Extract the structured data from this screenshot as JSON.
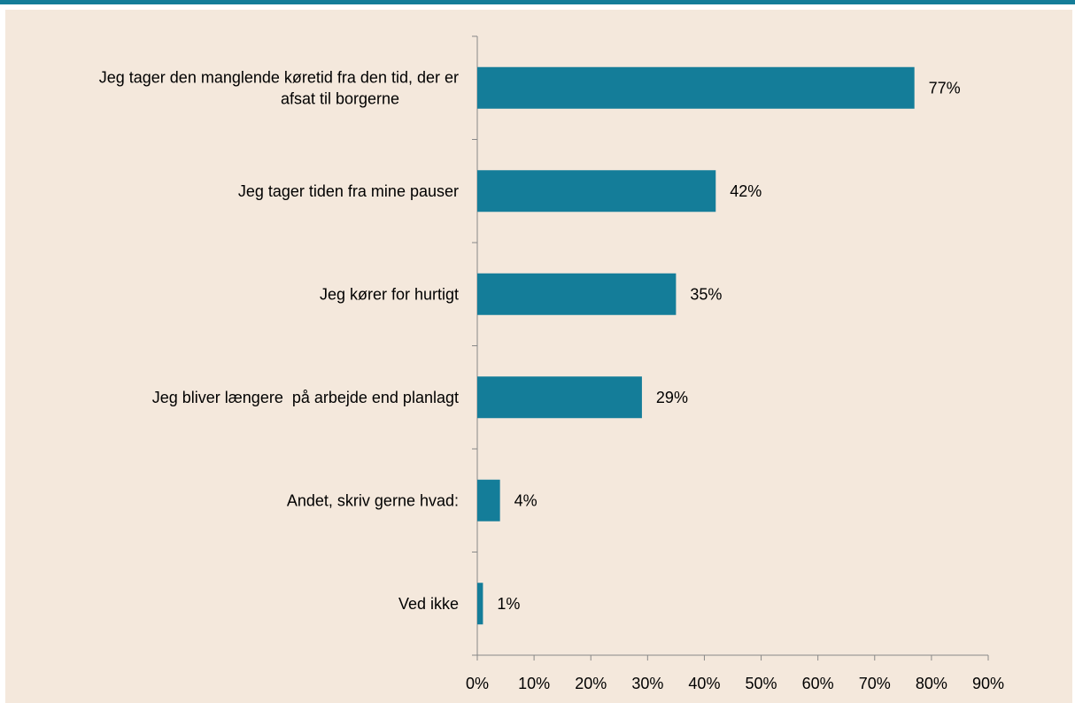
{
  "colors": {
    "bar": "#147d99",
    "background": "#f4e8dc",
    "topbar": "#147d99",
    "axis": "#888888"
  },
  "chart_data": {
    "type": "bar",
    "orientation": "horizontal",
    "categories": [
      "Jeg tager den manglende køretid fra den tid, der er afsat til borgerne",
      "Jeg tager tiden fra mine pauser",
      "Jeg kører for hurtigt",
      "Jeg bliver længere  på arbejde end planlagt",
      "Andet, skriv gerne hvad:",
      "Ved ikke"
    ],
    "category_lines": [
      [
        "Jeg tager den manglende køretid fra den tid, der er",
        "afsat til borgerne"
      ],
      [
        "Jeg tager tiden fra mine pauser"
      ],
      [
        "Jeg kører for hurtigt"
      ],
      [
        "Jeg bliver længere  på arbejde end planlagt"
      ],
      [
        "Andet, skriv gerne hvad:"
      ],
      [
        "Ved ikke"
      ]
    ],
    "values": [
      77,
      42,
      35,
      29,
      4,
      1
    ],
    "value_labels": [
      "77%",
      "42%",
      "35%",
      "29%",
      "4%",
      "1%"
    ],
    "xlim": [
      0,
      90
    ],
    "xticks": [
      0,
      10,
      20,
      30,
      40,
      50,
      60,
      70,
      80,
      90
    ],
    "xtick_labels": [
      "0%",
      "10%",
      "20%",
      "30%",
      "40%",
      "50%",
      "60%",
      "70%",
      "80%",
      "90%"
    ],
    "grid": false,
    "title": "",
    "xlabel": "",
    "ylabel": ""
  }
}
